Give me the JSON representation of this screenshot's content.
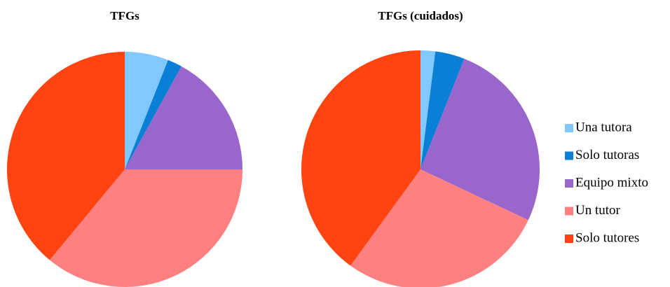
{
  "chart_data": [
    {
      "type": "pie",
      "title": "TFGs",
      "categories": [
        "Una tutora",
        "Solo tutoras",
        "Equipo mixto",
        "Un tutor",
        "Solo tutores"
      ],
      "values": [
        6,
        2,
        17,
        36,
        39
      ],
      "colors": [
        "#80c8ff",
        "#0a7fd6",
        "#9966cc",
        "#ff8080",
        "#ff4411"
      ]
    },
    {
      "type": "pie",
      "title": "TFGs (cuidados)",
      "categories": [
        "Una tutora",
        "Solo tutoras",
        "Equipo mixto",
        "Un tutor",
        "Solo tutores"
      ],
      "values": [
        2,
        4,
        26,
        28,
        40
      ],
      "colors": [
        "#80c8ff",
        "#0a7fd6",
        "#9966cc",
        "#ff8080",
        "#ff4411"
      ]
    }
  ]
}
